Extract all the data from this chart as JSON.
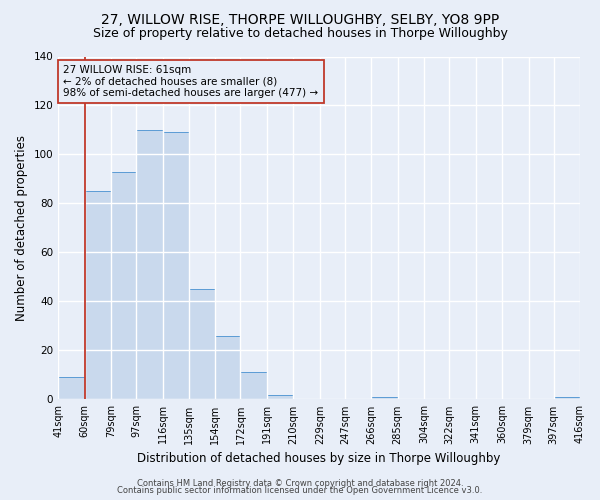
{
  "title": "27, WILLOW RISE, THORPE WILLOUGHBY, SELBY, YO8 9PP",
  "subtitle": "Size of property relative to detached houses in Thorpe Willoughby",
  "xlabel": "Distribution of detached houses by size in Thorpe Willoughby",
  "ylabel": "Number of detached properties",
  "bar_edges": [
    41,
    60,
    79,
    97,
    116,
    135,
    154,
    172,
    191,
    210,
    229,
    247,
    266,
    285,
    304,
    322,
    341,
    360,
    379,
    397,
    416
  ],
  "bar_heights": [
    9,
    85,
    93,
    110,
    109,
    45,
    26,
    11,
    2,
    0,
    0,
    0,
    1,
    0,
    0,
    0,
    0,
    0,
    0,
    1
  ],
  "bar_color": "#c9d9ed",
  "bar_edgecolor": "#5b9bd5",
  "property_line_x": 60,
  "property_line_color": "#c0392b",
  "ylim": [
    0,
    140
  ],
  "yticks": [
    0,
    20,
    40,
    60,
    80,
    100,
    120,
    140
  ],
  "annotation_box_text": "27 WILLOW RISE: 61sqm\n← 2% of detached houses are smaller (8)\n98% of semi-detached houses are larger (477) →",
  "annotation_box_color": "#c0392b",
  "footer_line1": "Contains HM Land Registry data © Crown copyright and database right 2024.",
  "footer_line2": "Contains public sector information licensed under the Open Government Licence v3.0.",
  "background_color": "#e8eef8",
  "plot_bg_color": "#e8eef8",
  "grid_color": "#ffffff",
  "title_fontsize": 10,
  "subtitle_fontsize": 9,
  "axis_label_fontsize": 8.5,
  "tick_label_fontsize": 7,
  "footer_fontsize": 6,
  "annotation_fontsize": 7.5
}
